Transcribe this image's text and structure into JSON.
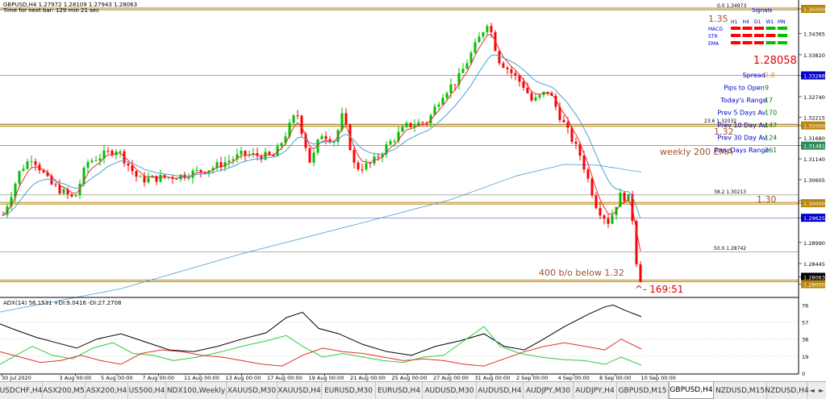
{
  "header": {
    "symbol_line": "GBPUSD,H4  1.27972 1.28109 1.27943 1.28063",
    "sub_line": "Time for next bar: 129 min 21 sec"
  },
  "indicator_header": "ADX(14) 56.1531 +DI:9.0416 -DI:27.2708",
  "price_axis": {
    "ticks": [
      "1.35000",
      "1.34365",
      "1.33820",
      "1.33288",
      "1.32740",
      "1.32215",
      "1.32000",
      "1.31680",
      "1.31481",
      "1.31140",
      "1.30605",
      "1.30065",
      "1.30000",
      "1.29625",
      "1.28990",
      "1.28445",
      "1.28063",
      "1.28000"
    ],
    "highlighted": {
      "1.35000": "#b8860b",
      "1.33288": "#0000cc",
      "1.32000": "#b8860b",
      "1.31481": "#2e8b57",
      "1.30000": "#b8860b",
      "1.29625": "#0000cc",
      "1.28063": "#000000",
      "1.28000": "#b8860b"
    }
  },
  "indicator_axis": {
    "ticks": [
      "76",
      "57",
      "38",
      "19",
      "0"
    ]
  },
  "time_axis": {
    "labels": [
      "30 Jul 2020",
      "3 Aug 00:00",
      "5 Aug 00:00",
      "7 Aug 00:00",
      "11 Aug 00:00",
      "13 Aug 00:00",
      "17 Aug 00:00",
      "19 Aug 00:00",
      "21 Aug 00:00",
      "25 Aug 00:00",
      "27 Aug 00:00",
      "31 Aug 00:00",
      "2 Sep 00:00",
      "4 Sep 00:00",
      "8 Sep 00:00",
      "10 Sep 00:00"
    ]
  },
  "fib_labels": {
    "fib_0": "0.0   1.34973",
    "fib_236": "23.6   1.32032",
    "fib_382": "38.2   1.30213",
    "fib_50": "50.0   1.28742"
  },
  "annotations": {
    "level_135": "1.35",
    "level_132": "1.32",
    "level_130": "1.30",
    "weekly_ema": "weekly 200 EMA",
    "breakout": "400 b/o below 1.32",
    "pip_move": "^- 169:51"
  },
  "signals_panel": {
    "title": "Signals",
    "timeframes": [
      "H1",
      "H4",
      "D1",
      "W1",
      "MN"
    ],
    "rows": [
      {
        "label": "MACD",
        "colors": [
          "#ff0000",
          "#ff0000",
          "#ff0000",
          "#00c000",
          "#00c000"
        ]
      },
      {
        "label": "STR",
        "colors": [
          "#ff0000",
          "#ff0000",
          "#ff0000",
          "#ff0000",
          "#00c000"
        ]
      },
      {
        "label": "EMA",
        "colors": [
          "#ff0000",
          "#ff0000",
          "#ff0000",
          "#00c000",
          "#00c000"
        ]
      }
    ],
    "price": "1.28058",
    "stats": [
      {
        "label": "Spread",
        "value": "2.8",
        "value_color": "#ff8c00"
      },
      {
        "label": "Pips to Open",
        "value": "9",
        "value_color": "#008000"
      },
      {
        "label": "Today's Range",
        "value": "17",
        "value_color": "#008000"
      },
      {
        "label": "Prev 5 Days Av",
        "value": "170",
        "value_color": "#008000"
      },
      {
        "label": "Prev 10 Day Av",
        "value": "147",
        "value_color": "#008000"
      },
      {
        "label": "Prev 30 Day Av",
        "value": "124",
        "value_color": "#008000"
      },
      {
        "label": "Prev Days Range",
        "value": "261",
        "value_color": "#008000"
      }
    ]
  },
  "tabs": [
    {
      "label": "USDCHF,H4",
      "active": false
    },
    {
      "label": "ASX200,M5",
      "active": false
    },
    {
      "label": "ASX200,H4",
      "active": false
    },
    {
      "label": "US500,H4",
      "active": false
    },
    {
      "label": "NDX100,Weekly",
      "active": false
    },
    {
      "label": "XAUUSD,M30",
      "active": false
    },
    {
      "label": "XAUUSD,H4",
      "active": false
    },
    {
      "label": "EURUSD,M30",
      "active": false
    },
    {
      "label": "EURUSD,H4",
      "active": false
    },
    {
      "label": "AUDUSD,M30",
      "active": false
    },
    {
      "label": "AUDUSD,H4",
      "active": false
    },
    {
      "label": "AUDJPY,M30",
      "active": false
    },
    {
      "label": "AUDJPY,H4",
      "active": false
    },
    {
      "label": "GBPUSD,M15",
      "active": false
    },
    {
      "label": "GBPUSD,H4",
      "active": true
    },
    {
      "label": "NZDUSD,M15",
      "active": false
    },
    {
      "label": "NZDUSD,H4",
      "active": false
    }
  ],
  "colors": {
    "bull": "#00c000",
    "bear": "#ff0000",
    "ema_fast": "#e03030",
    "ema_slow": "#4a9fd5",
    "ema_200": "#4a9fd5",
    "adx": "#000000",
    "plus_di": "#2ecc40",
    "minus_di": "#e03030",
    "level_line": "#b8860b",
    "fib_line": "#808080"
  },
  "chart_data": {
    "type": "line",
    "title": "GBPUSD,H4",
    "ylim": [
      1.275,
      1.353
    ],
    "levels": [
      1.35,
      1.32,
      1.3,
      1.28
    ],
    "fib_levels": [
      1.34973,
      1.32032,
      1.30213,
      1.28742
    ],
    "series": [
      {
        "x": [
          "30 Jul 2020",
          "3 Aug 00:00",
          "5 Aug 00:00",
          "7 Aug 00:00",
          "11 Aug 00:00",
          "13 Aug 00:00",
          "17 Aug 00:00",
          "19 Aug 00:00",
          "21 Aug 00:00",
          "25 Aug 00:00",
          "27 Aug 00:00",
          "31 Aug 00:00",
          "2 Sep 00:00",
          "4 Sep 00:00",
          "8 Sep 00:00",
          "10 Sep 00:00"
        ],
        "values": [
          1.297,
          1.3085,
          1.304,
          1.312,
          1.306,
          1.307,
          1.311,
          1.323,
          1.31,
          1.312,
          1.323,
          1.334,
          1.339,
          1.326,
          1.301,
          1.2806
        ]
      }
    ]
  }
}
